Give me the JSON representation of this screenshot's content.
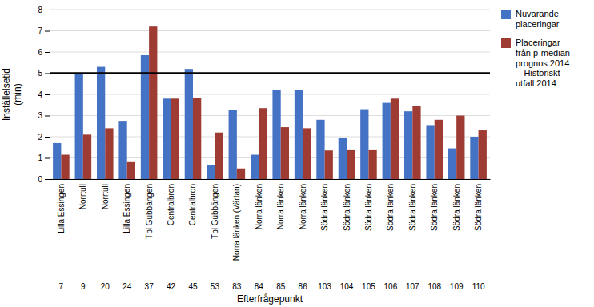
{
  "chart_data": {
    "type": "bar",
    "categories": [
      "Lilla Essingen",
      "Norrtull",
      "Norrtull",
      "Lilla Essingen",
      "Tpl Gubbängen",
      "Centralbron",
      "Centralbron",
      "Tpl Gubbängen",
      "Norra länken (Värtan)",
      "Norra länken",
      "Norra länken",
      "Norra länken",
      "Södra länken",
      "Södra länken",
      "Södra länken",
      "Södra länken",
      "Södra länken",
      "Södra länken",
      "Södra länken",
      "Södra länken"
    ],
    "category_ids": [
      "7",
      "9",
      "20",
      "24",
      "37",
      "42",
      "45",
      "53",
      "83",
      "84",
      "85",
      "86",
      "103",
      "104",
      "105",
      "106",
      "107",
      "108",
      "109",
      "110"
    ],
    "series": [
      {
        "name": "Nuvarande\nplaceringar",
        "color": "#4472C4",
        "values": [
          1.7,
          5.0,
          5.3,
          2.75,
          5.85,
          3.8,
          5.2,
          0.65,
          3.25,
          1.15,
          4.2,
          4.2,
          2.8,
          1.95,
          3.3,
          3.6,
          3.2,
          2.55,
          1.45,
          2.0
        ]
      },
      {
        "name": "Placeringar\nfrån p-median\nprognos 2014\n-- Historiskt\nutfall 2014",
        "color": "#9E3B32",
        "values": [
          1.15,
          2.1,
          2.4,
          0.8,
          7.2,
          3.8,
          3.85,
          2.2,
          0.5,
          3.35,
          2.45,
          2.4,
          1.35,
          1.4,
          1.4,
          3.8,
          3.45,
          2.8,
          3.0,
          2.3
        ]
      }
    ],
    "xlabel": "Efterfrågepunkt",
    "ylabel": "Inställelsetid\n(min)",
    "ylim": [
      0,
      8
    ],
    "yticks": [
      0,
      1,
      2,
      3,
      4,
      5,
      6,
      7,
      8
    ],
    "grid": true,
    "legend": "right",
    "reference_line": 5.0
  }
}
